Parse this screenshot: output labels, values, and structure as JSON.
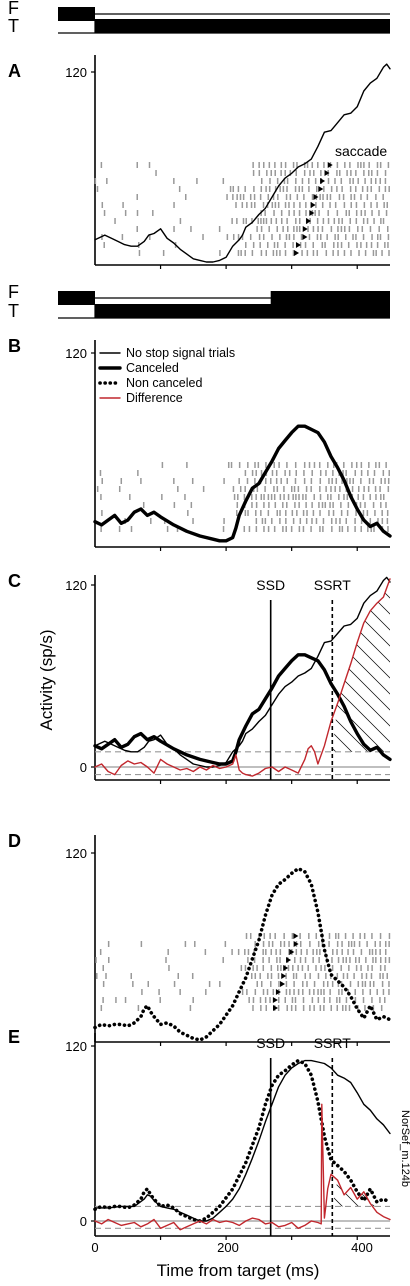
{
  "figure": {
    "watermark": "NorSef_m.124b",
    "x_axis": {
      "label": "Time from target (ms)",
      "ticks": [
        0,
        200,
        400
      ],
      "range": [
        0,
        450
      ]
    }
  },
  "timelines": [
    {
      "labels": [
        "F",
        "T"
      ],
      "fixation_on": [
        [
          -50,
          0
        ]
      ],
      "target_on": [
        [
          0,
          450
        ]
      ]
    },
    {
      "labels": [
        "F",
        "T"
      ],
      "fixation_on": [
        [
          -50,
          0
        ],
        [
          268,
          450
        ]
      ],
      "target_on": [
        [
          0,
          450
        ]
      ]
    }
  ],
  "chart_data": [
    {
      "panel": "A",
      "type": "line",
      "ylabel": "",
      "y_ticks": [
        120
      ],
      "ylim": [
        0,
        125
      ],
      "annotations": [
        "saccade"
      ],
      "series": [
        {
          "style": "thin",
          "x": [
            0,
            15,
            25,
            35,
            45,
            55,
            65,
            75,
            82,
            90,
            100,
            110,
            120,
            130,
            140,
            150,
            160,
            170,
            180,
            190,
            200,
            210,
            220,
            225,
            230,
            240,
            250,
            260,
            270,
            280,
            290,
            300,
            310,
            320,
            330,
            340,
            350,
            360,
            370,
            380,
            390,
            400,
            410,
            420,
            430,
            440,
            445,
            450
          ],
          "values": [
            14,
            17,
            15,
            13,
            11,
            10,
            10,
            13,
            17,
            18,
            21,
            15,
            12,
            8,
            5,
            2,
            1,
            0,
            0,
            1,
            3,
            10,
            14,
            17,
            22,
            25,
            30,
            34,
            41,
            48,
            53,
            56,
            60,
            62,
            65,
            73,
            82,
            83,
            88,
            93,
            94,
            98,
            108,
            113,
            116,
            123,
            125,
            122
          ]
        }
      ],
      "raster_density": "sparse-then-dense"
    },
    {
      "panel": "B",
      "type": "line",
      "ylabel": "",
      "y_ticks": [
        120
      ],
      "ylim": [
        0,
        125
      ],
      "legend": {
        "placement": "top-left",
        "entries": [
          {
            "label": "No stop signal trials",
            "style": "thin",
            "color": "#000000"
          },
          {
            "label": "Canceled",
            "style": "thick",
            "color": "#000000"
          },
          {
            "label": "Non canceled",
            "style": "dotted",
            "color": "#000000"
          },
          {
            "label": "Difference",
            "style": "thin",
            "color": "#c1272d"
          }
        ]
      },
      "series": [
        {
          "style": "thick",
          "x": [
            0,
            10,
            20,
            30,
            40,
            50,
            60,
            70,
            80,
            90,
            100,
            120,
            140,
            160,
            180,
            190,
            200,
            210,
            215,
            220,
            230,
            240,
            250,
            260,
            270,
            280,
            290,
            300,
            310,
            320,
            330,
            340,
            350,
            360,
            370,
            380,
            390,
            400,
            410,
            420,
            430,
            440,
            450
          ],
          "values": [
            14,
            12,
            15,
            18,
            13,
            15,
            20,
            22,
            18,
            20,
            17,
            12,
            8,
            5,
            3,
            2,
            2,
            4,
            10,
            18,
            27,
            35,
            38,
            45,
            52,
            60,
            65,
            70,
            74,
            74,
            72,
            70,
            64,
            55,
            48,
            40,
            30,
            22,
            15,
            11,
            13,
            8,
            5
          ]
        }
      ],
      "raster_density": "sparse-then-dense"
    },
    {
      "panel": "C",
      "type": "line",
      "ylabel": "Activity (sp/s)",
      "y_ticks": [
        0,
        120
      ],
      "ylim": [
        -8,
        125
      ],
      "markers": [
        {
          "label": "SSD",
          "x": 268,
          "style": "solid"
        },
        {
          "label": "SSRT",
          "x": 362,
          "style": "dashed"
        }
      ],
      "threshold_band": [
        -5,
        10
      ],
      "series": [
        {
          "style": "thin",
          "name_ref": "No stop signal trials",
          "x": [
            0,
            15,
            25,
            35,
            45,
            55,
            65,
            75,
            82,
            90,
            100,
            110,
            120,
            130,
            140,
            150,
            160,
            170,
            180,
            190,
            200,
            210,
            220,
            225,
            230,
            240,
            250,
            260,
            270,
            280,
            290,
            300,
            310,
            320,
            330,
            340,
            350,
            360,
            370,
            380,
            390,
            400,
            410,
            420,
            430,
            440,
            445,
            450
          ],
          "values": [
            14,
            17,
            15,
            13,
            11,
            10,
            10,
            13,
            17,
            18,
            21,
            15,
            12,
            8,
            5,
            2,
            1,
            0,
            0,
            1,
            3,
            10,
            14,
            17,
            22,
            25,
            30,
            34,
            41,
            48,
            53,
            56,
            60,
            62,
            65,
            73,
            82,
            83,
            88,
            93,
            94,
            98,
            108,
            113,
            116,
            123,
            125,
            122
          ]
        },
        {
          "style": "thick",
          "name_ref": "Canceled",
          "x": [
            0,
            10,
            20,
            30,
            40,
            50,
            60,
            70,
            80,
            90,
            100,
            120,
            140,
            160,
            180,
            190,
            200,
            210,
            215,
            220,
            230,
            240,
            250,
            260,
            270,
            280,
            290,
            300,
            310,
            320,
            330,
            340,
            350,
            360,
            370,
            380,
            390,
            400,
            410,
            420,
            430,
            440,
            450
          ],
          "values": [
            14,
            12,
            15,
            18,
            13,
            15,
            20,
            22,
            18,
            20,
            17,
            12,
            8,
            5,
            3,
            2,
            2,
            4,
            10,
            18,
            27,
            35,
            38,
            45,
            52,
            60,
            65,
            70,
            74,
            74,
            72,
            70,
            64,
            55,
            48,
            40,
            30,
            22,
            15,
            11,
            13,
            8,
            5
          ]
        },
        {
          "style": "thin",
          "color": "#c1272d",
          "name_ref": "Difference",
          "x": [
            0,
            10,
            20,
            30,
            40,
            50,
            60,
            70,
            80,
            90,
            100,
            110,
            120,
            130,
            140,
            150,
            160,
            170,
            180,
            190,
            200,
            210,
            215,
            220,
            225,
            230,
            240,
            250,
            260,
            270,
            280,
            290,
            300,
            310,
            320,
            325,
            330,
            335,
            340,
            350,
            360,
            370,
            380,
            390,
            400,
            410,
            420,
            430,
            440,
            450
          ],
          "values": [
            0,
            2,
            -3,
            -5,
            1,
            4,
            2,
            3,
            0,
            -4,
            5,
            2,
            0,
            -2,
            -1,
            -3,
            0,
            -2,
            1,
            -1,
            0,
            2,
            8,
            -2,
            -4,
            -5,
            -6,
            -4,
            -1,
            0,
            -3,
            0,
            -2,
            -4,
            5,
            12,
            14,
            10,
            2,
            14,
            30,
            42,
            55,
            68,
            82,
            95,
            103,
            108,
            112,
            124
          ]
        }
      ],
      "hatched_area_from_x": 362
    },
    {
      "panel": "D",
      "type": "line",
      "ylabel": "",
      "y_ticks": [
        120
      ],
      "ylim": [
        0,
        125
      ],
      "series": [
        {
          "style": "dotted",
          "name_ref": "Non canceled",
          "x": [
            0,
            10,
            20,
            30,
            40,
            50,
            60,
            70,
            75,
            80,
            85,
            90,
            100,
            110,
            120,
            130,
            140,
            150,
            160,
            170,
            180,
            190,
            200,
            210,
            220,
            230,
            240,
            250,
            260,
            270,
            280,
            290,
            300,
            310,
            320,
            330,
            340,
            350,
            360,
            370,
            380,
            390,
            400,
            410,
            420,
            430,
            440,
            450
          ],
          "values": [
            8,
            10,
            9,
            10,
            10,
            9,
            11,
            15,
            20,
            22,
            18,
            15,
            10,
            11,
            9,
            5,
            3,
            1,
            0,
            2,
            6,
            10,
            16,
            22,
            31,
            40,
            52,
            64,
            80,
            93,
            100,
            103,
            107,
            110,
            108,
            100,
            82,
            58,
            42,
            38,
            34,
            28,
            20,
            14,
            22,
            13,
            15,
            13
          ]
        }
      ],
      "raster_density": "sparse-then-dense"
    },
    {
      "panel": "E",
      "type": "line",
      "ylabel": "",
      "y_ticks": [
        0,
        120
      ],
      "ylim": [
        -8,
        125
      ],
      "markers": [
        {
          "label": "SSD",
          "x": 268,
          "style": "solid"
        },
        {
          "label": "SSRT",
          "x": 362,
          "style": "dashed"
        }
      ],
      "threshold_band": [
        -5,
        10
      ],
      "series": [
        {
          "style": "thin",
          "name_ref": "No stop signal trials",
          "x": [
            0,
            20,
            40,
            60,
            75,
            80,
            85,
            90,
            100,
            110,
            120,
            130,
            140,
            150,
            160,
            170,
            180,
            190,
            200,
            210,
            220,
            230,
            240,
            250,
            260,
            270,
            280,
            290,
            300,
            310,
            320,
            330,
            340,
            350,
            360,
            370,
            380,
            390,
            400,
            410,
            420,
            430,
            440,
            450
          ],
          "values": [
            9,
            9,
            10,
            10,
            15,
            18,
            17,
            14,
            10,
            9,
            8,
            6,
            4,
            2,
            0,
            0,
            2,
            6,
            10,
            15,
            22,
            32,
            43,
            55,
            68,
            80,
            92,
            100,
            105,
            108,
            110,
            110,
            109,
            108,
            105,
            100,
            98,
            95,
            88,
            80,
            76,
            70,
            66,
            60
          ]
        },
        {
          "style": "dotted",
          "name_ref": "Non canceled",
          "x": [
            0,
            10,
            20,
            30,
            40,
            50,
            60,
            70,
            75,
            80,
            85,
            90,
            100,
            110,
            120,
            130,
            140,
            150,
            160,
            170,
            180,
            190,
            200,
            210,
            220,
            230,
            240,
            250,
            260,
            270,
            280,
            290,
            300,
            310,
            320,
            330,
            340,
            350,
            360,
            370,
            380,
            390,
            400,
            410,
            420,
            430,
            440,
            450
          ],
          "values": [
            8,
            10,
            9,
            10,
            10,
            9,
            11,
            15,
            20,
            22,
            18,
            15,
            10,
            11,
            9,
            5,
            3,
            1,
            0,
            2,
            6,
            10,
            16,
            22,
            31,
            40,
            52,
            64,
            80,
            93,
            100,
            103,
            107,
            110,
            108,
            100,
            82,
            58,
            42,
            38,
            34,
            28,
            20,
            14,
            22,
            13,
            15,
            13
          ]
        },
        {
          "style": "thin",
          "color": "#c1272d",
          "name_ref": "Difference",
          "x": [
            0,
            10,
            20,
            30,
            40,
            50,
            60,
            70,
            80,
            90,
            100,
            110,
            120,
            130,
            140,
            150,
            160,
            170,
            180,
            190,
            200,
            210,
            220,
            230,
            240,
            250,
            260,
            270,
            280,
            290,
            300,
            310,
            320,
            330,
            340,
            345,
            346,
            350,
            352,
            355,
            360,
            370,
            380,
            390,
            400,
            410,
            420,
            430,
            440,
            450
          ],
          "values": [
            0,
            -2,
            1,
            -1,
            -3,
            -2,
            -1,
            -4,
            -2,
            1,
            -5,
            -3,
            -1,
            -6,
            -4,
            -2,
            0,
            -2,
            1,
            -1,
            0,
            -1,
            -3,
            0,
            2,
            1,
            -2,
            -1,
            -4,
            -3,
            -1,
            -5,
            -3,
            0,
            -1,
            -2,
            80,
            2,
            10,
            22,
            32,
            28,
            18,
            23,
            15,
            20,
            12,
            6,
            3,
            1
          ]
        }
      ],
      "hatched_area_from_x": 362
    }
  ]
}
